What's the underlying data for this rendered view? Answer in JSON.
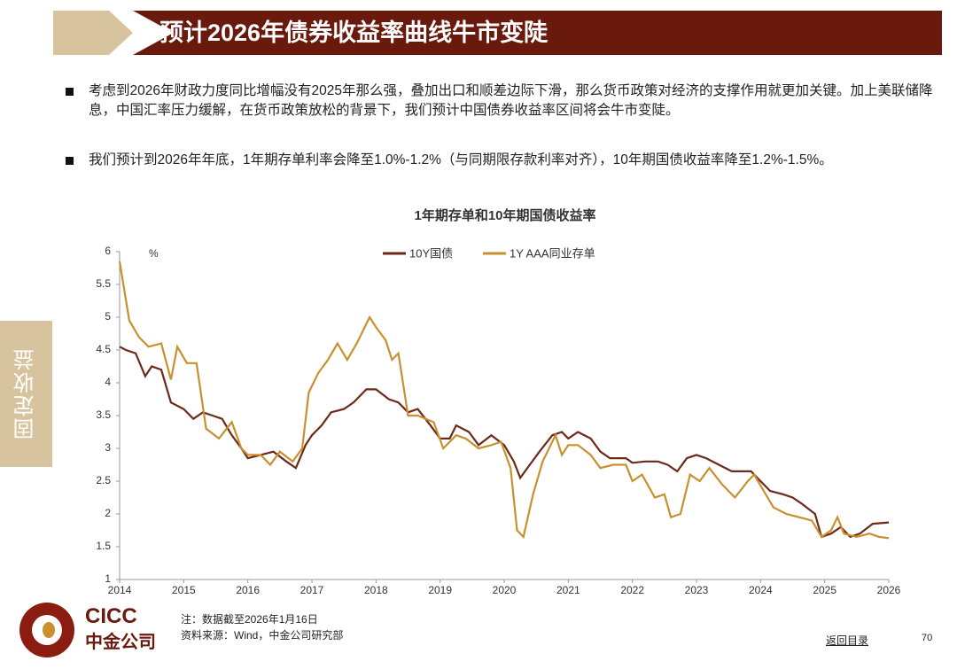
{
  "header": {
    "title": "预计2026年债券收益率曲线牛市变陡"
  },
  "bullets": [
    "考虑到2026年财政力度同比增幅没有2025年那么强，叠加出口和顺差边际下滑，那么货币政策对经济的支撑作用就更加关键。加上美联储降息，中国汇率压力缓解，在货币政策放松的背景下，我们预计中国债券收益率区间将会牛市变陡。",
    "我们预计到2026年年底，1年期存单利率会降至1.0%-1.2%（与同期限存款利率对齐），10年期国债收益率降至1.2%-1.5%。"
  ],
  "side_tab": "固定收益",
  "logo": {
    "en": "CICC",
    "cn": "中金公司"
  },
  "footer": {
    "note": "注：数据截至2026年1月16日",
    "source": "资料来源：Wind，中金公司研究部",
    "back": "返回目录",
    "page": "70"
  },
  "chart_data": {
    "type": "line",
    "title": "1年期存单和10年期国债收益率",
    "unit": "%",
    "xlim": [
      2014,
      2026
    ],
    "xticks": [
      2014,
      2015,
      2016,
      2017,
      2018,
      2019,
      2020,
      2021,
      2022,
      2023,
      2024,
      2025,
      2026
    ],
    "ylim": [
      1,
      6
    ],
    "yticks": [
      1,
      1.5,
      2,
      2.5,
      3,
      3.5,
      4,
      4.5,
      5,
      5.5,
      6
    ],
    "legend": "top",
    "series": [
      {
        "name": "10Y国债",
        "color": "#6b2a1a",
        "x": [
          2014,
          2014.1,
          2014.25,
          2014.4,
          2014.5,
          2014.65,
          2014.8,
          2015,
          2015.15,
          2015.3,
          2015.45,
          2015.6,
          2015.75,
          2015.9,
          2016,
          2016.2,
          2016.4,
          2016.6,
          2016.75,
          2016.9,
          2017,
          2017.15,
          2017.3,
          2017.5,
          2017.65,
          2017.85,
          2018,
          2018.2,
          2018.35,
          2018.5,
          2018.65,
          2018.85,
          2019,
          2019.15,
          2019.25,
          2019.45,
          2019.6,
          2019.8,
          2020,
          2020.15,
          2020.25,
          2020.4,
          2020.55,
          2020.75,
          2020.9,
          2021,
          2021.15,
          2021.35,
          2021.5,
          2021.65,
          2021.9,
          2022,
          2022.2,
          2022.4,
          2022.55,
          2022.7,
          2022.85,
          2023,
          2023.15,
          2023.35,
          2023.55,
          2023.7,
          2023.85,
          2024,
          2024.15,
          2024.35,
          2024.5,
          2024.65,
          2024.85,
          2024.95,
          2025.1,
          2025.25,
          2025.4,
          2025.55,
          2025.75,
          2026
        ],
        "values": [
          4.55,
          4.5,
          4.45,
          4.1,
          4.25,
          4.2,
          3.7,
          3.6,
          3.45,
          3.55,
          3.5,
          3.45,
          3.2,
          3.0,
          2.85,
          2.9,
          2.95,
          2.8,
          2.7,
          3.05,
          3.2,
          3.35,
          3.55,
          3.6,
          3.7,
          3.9,
          3.9,
          3.75,
          3.7,
          3.55,
          3.6,
          3.35,
          3.15,
          3.15,
          3.35,
          3.25,
          3.05,
          3.2,
          3.05,
          2.8,
          2.55,
          2.75,
          2.95,
          3.2,
          3.25,
          3.15,
          3.25,
          3.15,
          2.95,
          2.85,
          2.85,
          2.78,
          2.8,
          2.8,
          2.75,
          2.65,
          2.85,
          2.9,
          2.85,
          2.75,
          2.65,
          2.65,
          2.65,
          2.5,
          2.35,
          2.3,
          2.25,
          2.15,
          2.0,
          1.65,
          1.7,
          1.8,
          1.65,
          1.7,
          1.85,
          1.87
        ]
      },
      {
        "name": "1Y AAA同业存单",
        "color": "#c8902e",
        "x": [
          2014,
          2014.15,
          2014.3,
          2014.45,
          2014.65,
          2014.8,
          2014.9,
          2015.05,
          2015.2,
          2015.35,
          2015.55,
          2015.75,
          2015.9,
          2016,
          2016.2,
          2016.35,
          2016.5,
          2016.7,
          2016.85,
          2016.95,
          2017.1,
          2017.25,
          2017.4,
          2017.55,
          2017.7,
          2017.9,
          2018,
          2018.15,
          2018.25,
          2018.35,
          2018.5,
          2018.65,
          2018.9,
          2019.05,
          2019.25,
          2019.4,
          2019.6,
          2019.8,
          2019.95,
          2020.1,
          2020.2,
          2020.3,
          2020.45,
          2020.6,
          2020.8,
          2020.9,
          2021,
          2021.15,
          2021.35,
          2021.5,
          2021.7,
          2021.9,
          2022,
          2022.15,
          2022.35,
          2022.5,
          2022.6,
          2022.75,
          2022.9,
          2023.05,
          2023.2,
          2023.4,
          2023.6,
          2023.8,
          2023.9,
          2024.05,
          2024.2,
          2024.4,
          2024.6,
          2024.8,
          2024.95,
          2025.1,
          2025.2,
          2025.3,
          2025.5,
          2025.7,
          2025.85,
          2026
        ],
        "values": [
          5.85,
          4.95,
          4.7,
          4.55,
          4.6,
          4.05,
          4.55,
          4.3,
          4.3,
          3.3,
          3.15,
          3.4,
          3.0,
          2.9,
          2.9,
          2.75,
          2.95,
          2.8,
          3.0,
          3.85,
          4.15,
          4.35,
          4.6,
          4.35,
          4.6,
          5.0,
          4.85,
          4.65,
          4.35,
          4.45,
          3.5,
          3.5,
          3.4,
          3.0,
          3.2,
          3.15,
          3.0,
          3.05,
          3.1,
          2.7,
          1.75,
          1.65,
          2.3,
          2.8,
          3.2,
          2.9,
          3.05,
          3.05,
          2.9,
          2.7,
          2.75,
          2.75,
          2.5,
          2.6,
          2.25,
          2.3,
          1.95,
          2.0,
          2.6,
          2.5,
          2.7,
          2.45,
          2.25,
          2.5,
          2.6,
          2.35,
          2.1,
          2.0,
          1.95,
          1.9,
          1.65,
          1.75,
          1.95,
          1.7,
          1.65,
          1.7,
          1.65,
          1.63
        ]
      }
    ]
  }
}
